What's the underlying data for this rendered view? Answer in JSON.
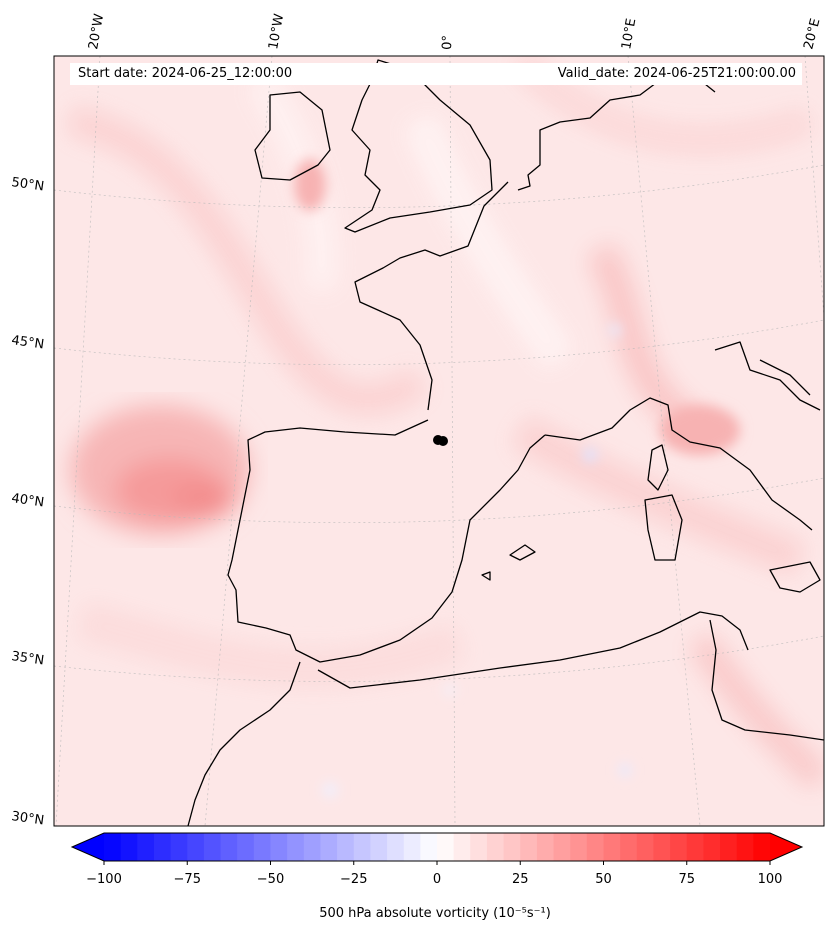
{
  "header": {
    "start_date": "Start date: 2024-06-25_12:00:00",
    "valid_date": "Valid_date: 2024-06-25T21:00:00.00"
  },
  "map": {
    "lon_labels": [
      "20°W",
      "10°W",
      "0°",
      "10°E",
      "20°E"
    ],
    "lat_labels": [
      "50°N",
      "45°N",
      "40°N",
      "35°N",
      "30°N"
    ],
    "marker": "black dot (point of interest)",
    "field": "500 hPa absolute vorticity"
  },
  "colorbar": {
    "label": "500 hPa absolute vorticity (10⁻⁵s⁻¹)",
    "ticks": [
      "−100",
      "−75",
      "−50",
      "−25",
      "0",
      "25",
      "50",
      "75",
      "100"
    ],
    "tick_values": [
      -100,
      -75,
      -50,
      -25,
      0,
      25,
      50,
      75,
      100
    ],
    "range": [
      -100,
      100
    ],
    "levels": 40,
    "colormap": "bwr",
    "extend": "both"
  },
  "colors": {
    "negative_end": "#0000ff",
    "neutral": "#ffffff",
    "positive_end": "#ff0000",
    "coastline": "#000000"
  }
}
